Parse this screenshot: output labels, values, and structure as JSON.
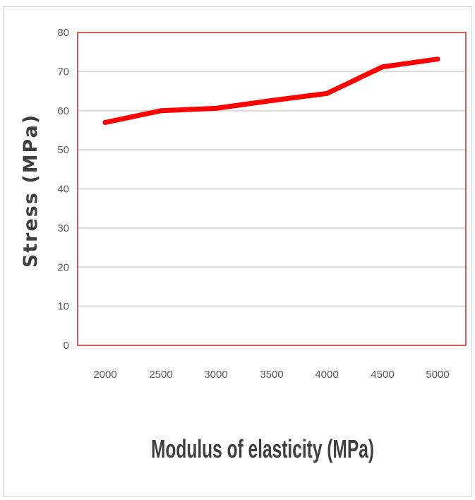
{
  "chart_data": {
    "type": "line",
    "title": "",
    "xlabel": "Modulus of elasticity (MPa)",
    "ylabel": "Stress (MPa)",
    "categories": [
      "2000",
      "2500",
      "3000",
      "3500",
      "4000",
      "4500",
      "5000"
    ],
    "series": [
      {
        "values": [
          57,
          60,
          60.6,
          62.6,
          64.4,
          71.2,
          73.2
        ]
      }
    ],
    "ylim": [
      0,
      80
    ],
    "yticks": [
      "0",
      "10",
      "20",
      "30",
      "40",
      "50",
      "60",
      "70",
      "80"
    ],
    "grid": "horizontal",
    "legend": "none",
    "colors": {
      "line": "#ff0000",
      "plot_border": "#e02020",
      "grid": "#d9d9d9",
      "tick_text": "#595959",
      "label_text": "#404040"
    }
  }
}
